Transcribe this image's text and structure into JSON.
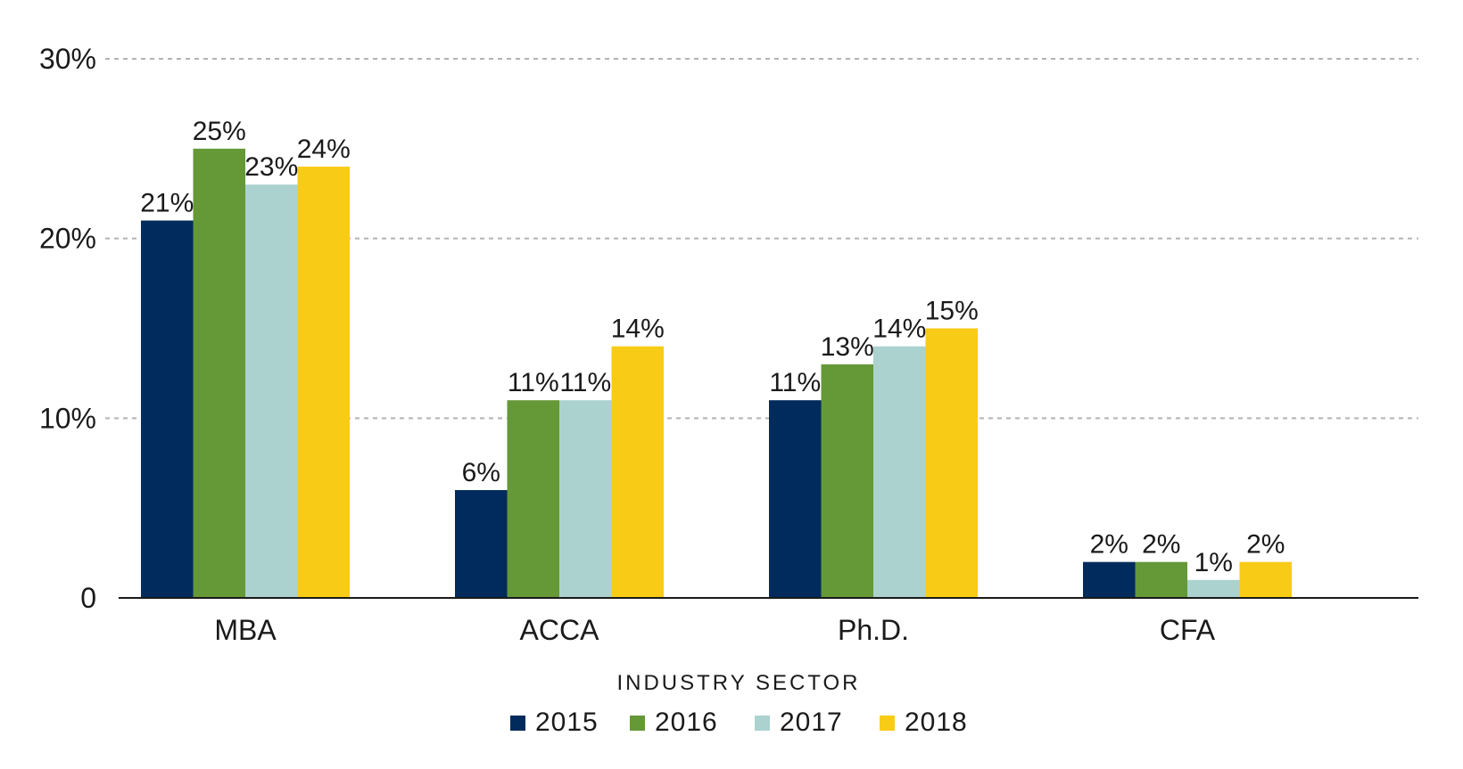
{
  "chart_data": {
    "type": "bar",
    "title": "",
    "xlabel": "INDUSTRY SECTOR",
    "ylabel": "",
    "categories": [
      "MBA",
      "ACCA",
      "Ph.D.",
      "CFA"
    ],
    "series": [
      {
        "name": "2015",
        "color": "#002b5c",
        "values": [
          21,
          6,
          11,
          2
        ],
        "labels": [
          "21%",
          "6%",
          "11%",
          "2%"
        ]
      },
      {
        "name": "2016",
        "color": "#659837",
        "values": [
          25,
          11,
          13,
          2
        ],
        "labels": [
          "25%",
          "11%",
          "13%",
          "2%"
        ]
      },
      {
        "name": "2017",
        "color": "#abd2cf",
        "values": [
          23,
          11,
          14,
          1
        ],
        "labels": [
          "23%",
          "11%",
          "14%",
          "1%"
        ]
      },
      {
        "name": "2018",
        "color": "#f8cc16",
        "values": [
          24,
          14,
          15,
          2
        ],
        "labels": [
          "24%",
          "14%",
          "15%",
          "2%"
        ]
      }
    ],
    "ylim": [
      0,
      30
    ],
    "yticks": [
      0,
      10,
      20,
      30
    ],
    "ytick_labels": [
      "0",
      "10%",
      "20%",
      "30%"
    ],
    "grid": true,
    "legend_position": "bottom-center",
    "colors": {
      "gridline": "#b3b3b3",
      "axis": "#1a1a1a"
    }
  }
}
